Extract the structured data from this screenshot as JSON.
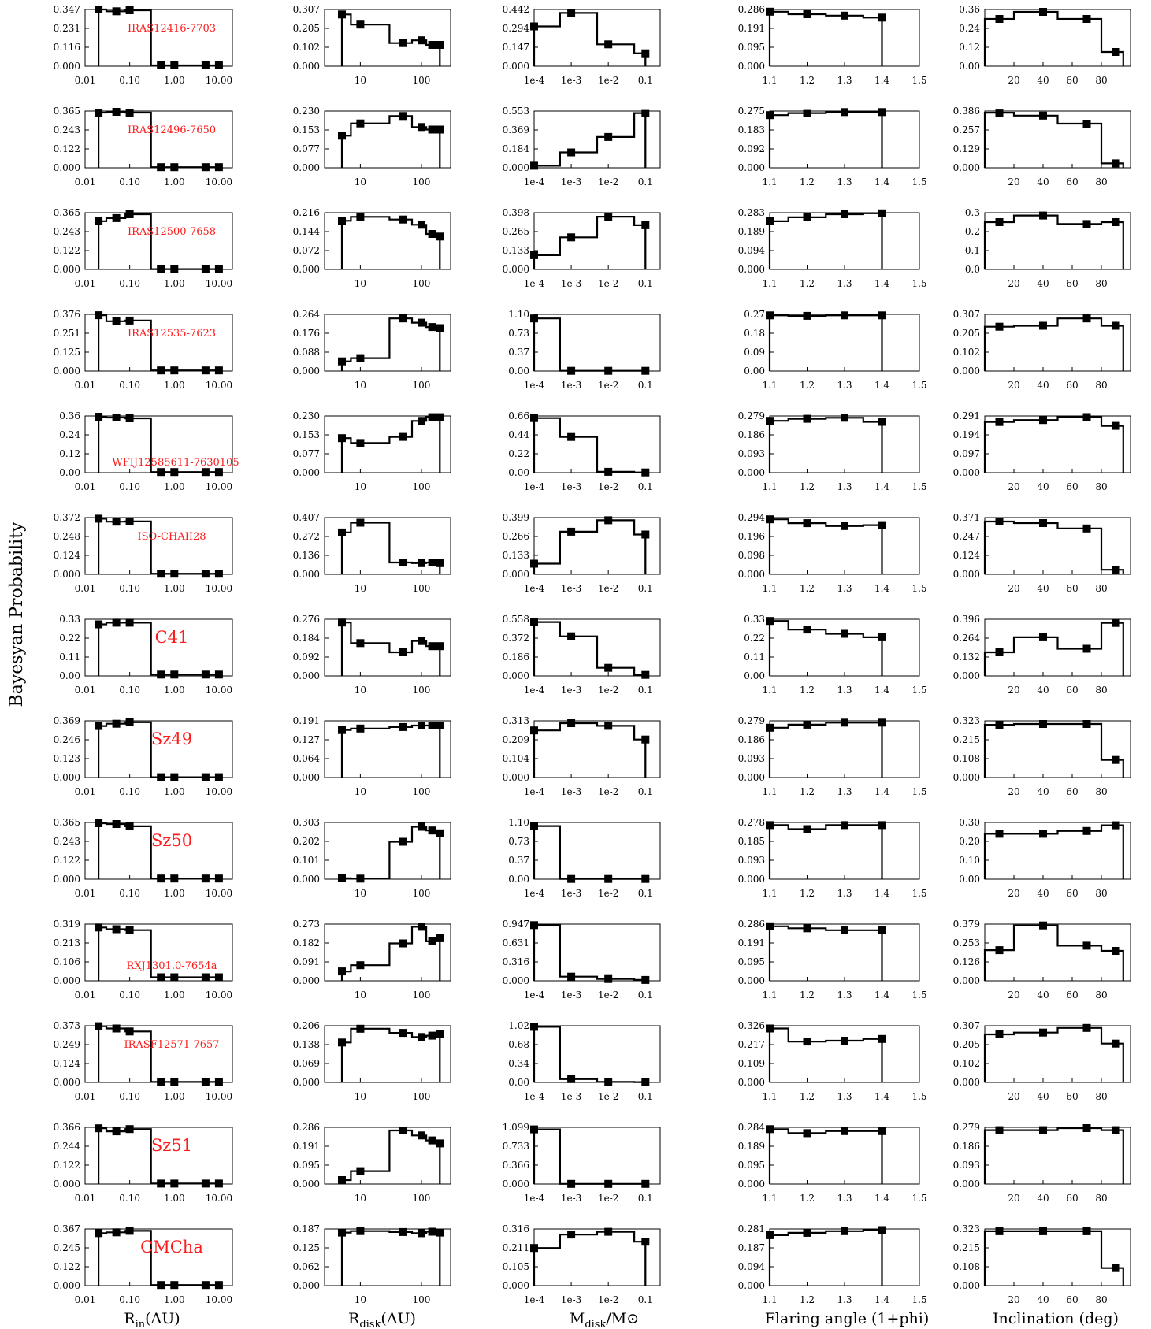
{
  "figure": {
    "ylabel": "Bayesyan Probability",
    "column_xlabels": [
      "R",
      "R",
      "M",
      "Flaring angle (1+phi)",
      "Inclination (deg)"
    ],
    "column_xlabel_subscripts": [
      "in",
      "disk",
      "disk",
      "",
      ""
    ],
    "column_xlabel_units": [
      "(AU)",
      "(AU)",
      "/M⊙",
      "",
      ""
    ],
    "objects": [
      "IRAS12416-7703",
      "IRAS12496-7650",
      "IRAS12500-7658",
      "IRAS12535-7623",
      "WFIJ12585611-7630105",
      "ISO-CHAII28",
      "C41",
      "Sz49",
      "Sz50",
      "RXJ1301.0-7654a",
      "IRASF12571-7657",
      "Sz51",
      "CMCha"
    ]
  },
  "axes": [
    {
      "type": "log",
      "range": [
        0.01,
        20
      ],
      "ticks": [
        {
          "v": 0.01,
          "label": "0.01"
        },
        {
          "v": 0.1,
          "label": "0.10"
        },
        {
          "v": 1,
          "label": "1.00"
        },
        {
          "v": 10,
          "label": "10.00"
        }
      ]
    },
    {
      "type": "log",
      "range": [
        2.6,
        300
      ],
      "ticks": [
        {
          "v": 10,
          "label": "10"
        },
        {
          "v": 100,
          "label": "100"
        }
      ]
    },
    {
      "type": "log",
      "range": [
        0.0001,
        0.25
      ],
      "ticks": [
        {
          "v": 0.0001,
          "label": "1e-4"
        },
        {
          "v": 0.001,
          "label": "1e-3"
        },
        {
          "v": 0.01,
          "label": "1e-2"
        },
        {
          "v": 0.1,
          "label": "0.1"
        }
      ]
    },
    {
      "type": "linear",
      "range": [
        1.1,
        1.5
      ],
      "ticks": [
        {
          "v": 1.1,
          "label": "1.1"
        },
        {
          "v": 1.2,
          "label": "1.2"
        },
        {
          "v": 1.3,
          "label": "1.3"
        },
        {
          "v": 1.4,
          "label": "1.4"
        },
        {
          "v": 1.5,
          "label": "1.5"
        }
      ]
    },
    {
      "type": "linear",
      "range": [
        0,
        100
      ],
      "ticks": [
        {
          "v": 20,
          "label": "20"
        },
        {
          "v": 40,
          "label": "40"
        },
        {
          "v": 60,
          "label": "60"
        },
        {
          "v": 80,
          "label": "80"
        }
      ]
    }
  ],
  "chart_data": {
    "type": "line",
    "title": "",
    "ylabel": "Bayesyan Probability",
    "step_histograms": true,
    "x_values": [
      [
        0.02,
        0.05,
        0.1,
        0.5,
        1,
        5,
        10
      ],
      [
        5,
        10,
        50,
        100,
        150,
        200
      ],
      [
        0.0001,
        0.001,
        0.01,
        0.1
      ],
      [
        1.1,
        1.2,
        1.3,
        1.4
      ],
      [
        10,
        40,
        70,
        90
      ]
    ],
    "bin_edges": [
      [
        0.02,
        0.03,
        0.08,
        0.3,
        0.7,
        3,
        7,
        10
      ],
      [
        5,
        7,
        30,
        70,
        120,
        170,
        200
      ],
      [
        0.0001,
        0.0005,
        0.005,
        0.05,
        0.1
      ],
      [
        1.1,
        1.15,
        1.25,
        1.35,
        1.4
      ],
      [
        0,
        20,
        50,
        80,
        95
      ]
    ],
    "panels": [
      {
        "object": "IRAS12416-7703",
        "values": [
          [
            0.347,
            0.336,
            0.342,
            0.005,
            0.005,
            0.005,
            0.005
          ],
          [
            0.28,
            0.225,
            0.125,
            0.14,
            0.115,
            0.115
          ],
          [
            0.31,
            0.415,
            0.17,
            0.1
          ],
          [
            0.275,
            0.262,
            0.255,
            0.245
          ],
          [
            0.3,
            0.345,
            0.3,
            0.09
          ]
        ],
        "yticks": [
          [
            "0.347",
            "0.231",
            "0.116",
            "0.000"
          ],
          [
            "0.307",
            "0.205",
            "0.102",
            "0.000"
          ],
          [
            "0.442",
            "0.294",
            "0.147",
            "0.000"
          ],
          [
            "0.286",
            "0.191",
            "0.095",
            "0.000"
          ],
          [
            "0.36",
            "0.24",
            "0.12",
            "0.00"
          ]
        ]
      },
      {
        "object": "IRAS12496-7650",
        "values": [
          [
            0.355,
            0.36,
            0.355,
            0.004,
            0.004,
            0.004,
            0.004
          ],
          [
            0.13,
            0.18,
            0.21,
            0.165,
            0.155,
            0.155
          ],
          [
            0.02,
            0.15,
            0.3,
            0.533
          ],
          [
            0.255,
            0.265,
            0.27,
            0.27
          ],
          [
            0.375,
            0.355,
            0.3,
            0.03
          ]
        ],
        "yticks": [
          [
            "0.365",
            "0.243",
            "0.122",
            "0.000"
          ],
          [
            "0.230",
            "0.153",
            "0.077",
            "0.000"
          ],
          [
            "0.553",
            "0.369",
            "0.184",
            "0.000"
          ],
          [
            "0.275",
            "0.183",
            "0.092",
            "0.000"
          ],
          [
            "0.386",
            "0.257",
            "0.129",
            "0.000"
          ]
        ]
      },
      {
        "object": "IRAS12500-7658",
        "values": [
          [
            0.31,
            0.33,
            0.355,
            0.002,
            0.002,
            0.002,
            0.002
          ],
          [
            0.185,
            0.2,
            0.19,
            0.17,
            0.135,
            0.125
          ],
          [
            0.1,
            0.225,
            0.37,
            0.31
          ],
          [
            0.24,
            0.26,
            0.275,
            0.28
          ],
          [
            0.25,
            0.285,
            0.24,
            0.25
          ]
        ],
        "yticks": [
          [
            "0.365",
            "0.243",
            "0.122",
            "0.000"
          ],
          [
            "0.216",
            "0.144",
            "0.072",
            "0.000"
          ],
          [
            "0.398",
            "0.265",
            "0.133",
            "0.000"
          ],
          [
            "0.283",
            "0.189",
            "0.094",
            "0.000"
          ],
          [
            "0.3",
            "0.2",
            "0.1",
            "0.0"
          ]
        ]
      },
      {
        "object": "IRAS12535-7623",
        "values": [
          [
            0.37,
            0.33,
            0.335,
            0.004,
            0.004,
            0.004,
            0.004
          ],
          [
            0.045,
            0.06,
            0.245,
            0.225,
            0.205,
            0.2
          ],
          [
            1.02,
            0.004,
            0.004,
            0.004
          ],
          [
            0.265,
            0.263,
            0.265,
            0.265
          ],
          [
            0.24,
            0.245,
            0.285,
            0.245
          ]
        ],
        "yticks": [
          [
            "0.376",
            "0.251",
            "0.125",
            "0.000"
          ],
          [
            "0.264",
            "0.176",
            "0.088",
            "0.000"
          ],
          [
            "1.10",
            "0.73",
            "0.37",
            "0.00"
          ],
          [
            "0.27",
            "0.18",
            "0.09",
            "0.00"
          ],
          [
            "0.307",
            "0.205",
            "0.102",
            "0.000"
          ]
        ]
      },
      {
        "object": "WFIJ12585611-7630105",
        "values": [
          [
            0.355,
            0.35,
            0.345,
            0.004,
            0.004,
            0.004,
            0.004
          ],
          [
            0.14,
            0.12,
            0.145,
            0.21,
            0.225,
            0.225
          ],
          [
            0.635,
            0.415,
            0.01,
            0.003
          ],
          [
            0.255,
            0.265,
            0.27,
            0.25
          ],
          [
            0.26,
            0.27,
            0.285,
            0.24
          ]
        ],
        "yticks": [
          [
            "0.36",
            "0.24",
            "0.12",
            "0.00"
          ],
          [
            "0.230",
            "0.153",
            "0.077",
            "0.000"
          ],
          [
            "0.66",
            "0.44",
            "0.22",
            "0.00"
          ],
          [
            "0.279",
            "0.186",
            "0.093",
            "0.000"
          ],
          [
            "0.291",
            "0.194",
            "0.097",
            "0.000"
          ]
        ]
      },
      {
        "object": "ISO-CHAII28",
        "values": [
          [
            0.365,
            0.345,
            0.347,
            0.004,
            0.004,
            0.004,
            0.004
          ],
          [
            0.3,
            0.37,
            0.085,
            0.08,
            0.085,
            0.08
          ],
          [
            0.075,
            0.3,
            0.38,
            0.28
          ],
          [
            0.285,
            0.265,
            0.25,
            0.255
          ],
          [
            0.345,
            0.335,
            0.3,
            0.03
          ]
        ],
        "yticks": [
          [
            "0.372",
            "0.248",
            "0.124",
            "0.000"
          ],
          [
            "0.407",
            "0.272",
            "0.136",
            "0.000"
          ],
          [
            "0.399",
            "0.266",
            "0.133",
            "0.000"
          ],
          [
            "0.294",
            "0.196",
            "0.098",
            "0.000"
          ],
          [
            "0.371",
            "0.247",
            "0.124",
            "0.000"
          ]
        ]
      },
      {
        "object": "C41",
        "values": [
          [
            0.3,
            0.31,
            0.31,
            0.008,
            0.008,
            0.008,
            0.008
          ],
          [
            0.26,
            0.16,
            0.115,
            0.17,
            0.145,
            0.145
          ],
          [
            0.53,
            0.39,
            0.08,
            0.01
          ],
          [
            0.32,
            0.27,
            0.245,
            0.225
          ],
          [
            0.165,
            0.27,
            0.19,
            0.37
          ]
        ],
        "yticks": [
          [
            "0.33",
            "0.22",
            "0.11",
            "0.00"
          ],
          [
            "0.276",
            "0.184",
            "0.092",
            "0.000"
          ],
          [
            "0.558",
            "0.372",
            "0.186",
            "0.000"
          ],
          [
            "0.33",
            "0.22",
            "0.11",
            "0.00"
          ],
          [
            "0.396",
            "0.264",
            "0.132",
            "0.000"
          ]
        ]
      },
      {
        "object": "Sz49",
        "values": [
          [
            0.335,
            0.35,
            0.36,
            0.002,
            0.002,
            0.002,
            0.002
          ],
          [
            0.16,
            0.165,
            0.17,
            0.175,
            0.175,
            0.175
          ],
          [
            0.26,
            0.3,
            0.285,
            0.21
          ],
          [
            0.245,
            0.26,
            0.27,
            0.27
          ],
          [
            0.3,
            0.305,
            0.305,
            0.1
          ]
        ],
        "yticks": [
          [
            "0.369",
            "0.246",
            "0.123",
            "0.000"
          ],
          [
            "0.191",
            "0.127",
            "0.064",
            "0.000"
          ],
          [
            "0.313",
            "0.209",
            "0.104",
            "0.000"
          ],
          [
            "0.279",
            "0.186",
            "0.093",
            "0.000"
          ],
          [
            "0.323",
            "0.215",
            "0.108",
            "0.000"
          ]
        ]
      },
      {
        "object": "Sz50",
        "values": [
          [
            0.36,
            0.355,
            0.34,
            0.004,
            0.004,
            0.004,
            0.004
          ],
          [
            0.005,
            0.003,
            0.2,
            0.28,
            0.26,
            0.245
          ],
          [
            1.03,
            0.004,
            0.004,
            0.004
          ],
          [
            0.265,
            0.245,
            0.265,
            0.265
          ],
          [
            0.24,
            0.24,
            0.255,
            0.285
          ]
        ],
        "yticks": [
          [
            "0.365",
            "0.243",
            "0.122",
            "0.000"
          ],
          [
            "0.303",
            "0.202",
            "0.101",
            "0.000"
          ],
          [
            "1.10",
            "0.73",
            "0.37",
            "0.00"
          ],
          [
            "0.278",
            "0.185",
            "0.093",
            "0.000"
          ],
          [
            "0.30",
            "0.20",
            "0.10",
            "0.00"
          ]
        ]
      },
      {
        "object": "RXJ1301.0-7654a",
        "values": [
          [
            0.3,
            0.29,
            0.285,
            0.02,
            0.02,
            0.02,
            0.02
          ],
          [
            0.045,
            0.075,
            0.18,
            0.26,
            0.19,
            0.205
          ],
          [
            0.93,
            0.07,
            0.03,
            0.015
          ],
          [
            0.275,
            0.265,
            0.255,
            0.255
          ],
          [
            0.205,
            0.37,
            0.235,
            0.2
          ]
        ],
        "yticks": [
          [
            "0.319",
            "0.213",
            "0.106",
            "0.000"
          ],
          [
            "0.273",
            "0.182",
            "0.091",
            "0.000"
          ],
          [
            "0.947",
            "0.631",
            "0.316",
            "0.000"
          ],
          [
            "0.286",
            "0.191",
            "0.095",
            "0.000"
          ],
          [
            "0.379",
            "0.253",
            "0.126",
            "0.000"
          ]
        ]
      },
      {
        "object": "IRASF12571-7657",
        "values": [
          [
            0.37,
            0.355,
            0.335,
            0.003,
            0.003,
            0.003,
            0.003
          ],
          [
            0.145,
            0.195,
            0.18,
            0.165,
            0.17,
            0.175
          ],
          [
            1.0,
            0.06,
            0.01,
            0.005
          ],
          [
            0.31,
            0.235,
            0.24,
            0.25
          ],
          [
            0.26,
            0.27,
            0.295,
            0.21
          ]
        ],
        "yticks": [
          [
            "0.373",
            "0.249",
            "0.124",
            "0.000"
          ],
          [
            "0.206",
            "0.138",
            "0.069",
            "0.000"
          ],
          [
            "1.02",
            "0.68",
            "0.34",
            "0.00"
          ],
          [
            "0.326",
            "0.217",
            "0.109",
            "0.000"
          ],
          [
            "0.307",
            "0.205",
            "0.102",
            "0.000"
          ]
        ]
      },
      {
        "object": "Sz51",
        "values": [
          [
            0.36,
            0.34,
            0.355,
            0.003,
            0.003,
            0.003,
            0.003
          ],
          [
            0.02,
            0.065,
            0.27,
            0.245,
            0.22,
            0.205
          ],
          [
            1.06,
            0.003,
            0.003,
            0.003
          ],
          [
            0.275,
            0.255,
            0.265,
            0.265
          ],
          [
            0.265,
            0.265,
            0.275,
            0.265
          ]
        ],
        "yticks": [
          [
            "0.366",
            "0.244",
            "0.122",
            "0.000"
          ],
          [
            "0.286",
            "0.191",
            "0.095",
            "0.000"
          ],
          [
            "1.099",
            "0.733",
            "0.366",
            "0.000"
          ],
          [
            "0.284",
            "0.189",
            "0.095",
            "0.000"
          ],
          [
            "0.279",
            "0.186",
            "0.093",
            "0.000"
          ]
        ]
      },
      {
        "object": "CMCha",
        "values": [
          [
            0.34,
            0.345,
            0.355,
            0.004,
            0.004,
            0.004,
            0.004
          ],
          [
            0.175,
            0.18,
            0.177,
            0.173,
            0.178,
            0.175
          ],
          [
            0.21,
            0.285,
            0.3,
            0.245
          ],
          [
            0.25,
            0.262,
            0.27,
            0.275
          ],
          [
            0.31,
            0.31,
            0.31,
            0.1
          ]
        ],
        "yticks": [
          [
            "0.367",
            "0.245",
            "0.122",
            "0.000"
          ],
          [
            "0.187",
            "0.125",
            "0.062",
            "0.000"
          ],
          [
            "0.316",
            "0.211",
            "0.105",
            "0.000"
          ],
          [
            "0.281",
            "0.187",
            "0.094",
            "0.000"
          ],
          [
            "0.323",
            "0.215",
            "0.108",
            "0.000"
          ]
        ]
      }
    ]
  }
}
